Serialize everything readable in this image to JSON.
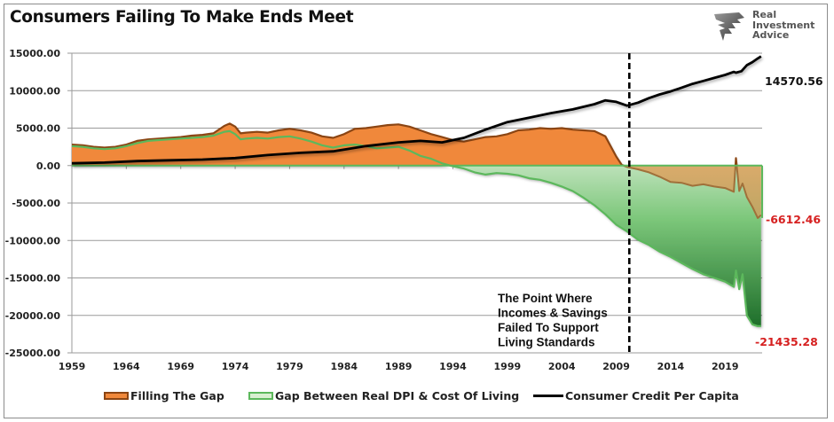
{
  "chart_data": {
    "type": "area",
    "title": "Consumers Failing To Make Ends Meet",
    "brand": [
      "Real",
      "Investment",
      "Advice"
    ],
    "xlabel": "",
    "ylabel": "",
    "xlim": [
      1959,
      2022.4
    ],
    "ylim": [
      -25000,
      15000
    ],
    "y_ticks": [
      "15000.00",
      "10000.00",
      "5000.00",
      "0.00",
      "-5000.00",
      "-10000.00",
      "-15000.00",
      "-20000.00",
      "-25000.00"
    ],
    "y_tick_values": [
      15000,
      10000,
      5000,
      0,
      -5000,
      -10000,
      -15000,
      -20000,
      -25000
    ],
    "x_ticks": [
      "1959",
      "1964",
      "1969",
      "1974",
      "1979",
      "1984",
      "1989",
      "1994",
      "1999",
      "2004",
      "2009",
      "2014",
      "2019"
    ],
    "x_tick_values": [
      1959,
      1964,
      1969,
      1974,
      1979,
      1984,
      1989,
      1994,
      1999,
      2004,
      2009,
      2014,
      2019
    ],
    "grid": true,
    "legend_position": "bottom",
    "series": [
      {
        "name": "Filling The Gap",
        "kind": "area",
        "color": "#f0883a",
        "edge_color": "#8b4513",
        "x": [
          1959,
          1960,
          1961,
          1962,
          1963,
          1964,
          1965,
          1966,
          1967,
          1968,
          1969,
          1970,
          1971,
          1972,
          1973,
          1973.5,
          1974,
          1974.5,
          1975,
          1976,
          1977,
          1978,
          1979,
          1980,
          1981,
          1982,
          1983,
          1984,
          1985,
          1986,
          1987,
          1988,
          1989,
          1990,
          1991,
          1992,
          1993,
          1994,
          1995,
          1996,
          1997,
          1998,
          1999,
          2000,
          2001,
          2002,
          2003,
          2004,
          2005,
          2006,
          2007,
          2008,
          2009,
          2009.5,
          2010,
          2011,
          2012,
          2013,
          2014,
          2015,
          2016,
          2017,
          2018,
          2019,
          2019.8,
          2020,
          2020.3,
          2020.6,
          2021,
          2021.5,
          2022,
          2022.3
        ],
        "values": [
          2800,
          2700,
          2500,
          2400,
          2500,
          2800,
          3300,
          3500,
          3600,
          3700,
          3800,
          4000,
          4100,
          4300,
          5300,
          5600,
          5200,
          4300,
          4400,
          4500,
          4400,
          4700,
          4900,
          4700,
          4400,
          3900,
          3700,
          4200,
          4900,
          5000,
          5200,
          5400,
          5500,
          5200,
          4700,
          4200,
          3800,
          3400,
          3200,
          3500,
          3800,
          3900,
          4200,
          4700,
          4800,
          5000,
          4900,
          5000,
          4800,
          4700,
          4600,
          3900,
          1200,
          100,
          -200,
          -500,
          -900,
          -1500,
          -2200,
          -2300,
          -2700,
          -2500,
          -2800,
          -3000,
          -3500,
          1000,
          -3400,
          -2400,
          -4200,
          -5500,
          -7000,
          -6612.46
        ]
      },
      {
        "name": "Gap Between Real DPI & Cost Of Living",
        "kind": "area",
        "color": "#5cb85c",
        "x": [
          1959,
          1960,
          1961,
          1962,
          1963,
          1964,
          1965,
          1966,
          1967,
          1968,
          1969,
          1970,
          1971,
          1972,
          1973,
          1973.5,
          1974,
          1974.5,
          1975,
          1976,
          1977,
          1978,
          1979,
          1980,
          1981,
          1982,
          1983,
          1984,
          1985,
          1986,
          1987,
          1988,
          1989,
          1990,
          1991,
          1992,
          1993,
          1994,
          1995,
          1996,
          1997,
          1998,
          1999,
          2000,
          2001,
          2002,
          2003,
          2004,
          2005,
          2006,
          2007,
          2008,
          2009,
          2010,
          2011,
          2012,
          2013,
          2014,
          2015,
          2016,
          2017,
          2018,
          2019,
          2019.8,
          2020,
          2020.3,
          2020.6,
          2021,
          2021.5,
          2022,
          2022.3
        ],
        "values": [
          2600,
          2500,
          2300,
          2200,
          2300,
          2600,
          3000,
          3300,
          3400,
          3500,
          3600,
          3700,
          3800,
          4000,
          4500,
          4600,
          4200,
          3500,
          3600,
          3700,
          3600,
          3800,
          3900,
          3600,
          3200,
          2700,
          2400,
          2700,
          2800,
          2600,
          2300,
          2400,
          2500,
          2000,
          1300,
          900,
          300,
          -100,
          -400,
          -900,
          -1200,
          -1000,
          -1100,
          -1300,
          -1700,
          -1900,
          -2300,
          -2800,
          -3400,
          -4300,
          -5300,
          -6500,
          -7900,
          -8800,
          -9900,
          -10600,
          -11500,
          -12200,
          -13000,
          -13800,
          -14500,
          -15000,
          -15500,
          -16200,
          -14000,
          -16500,
          -14500,
          -20000,
          -21200,
          -21435.28,
          -21435.28
        ]
      },
      {
        "name": "Consumer Credit Per Capita",
        "kind": "line",
        "color": "#000000",
        "x": [
          1959,
          1962,
          1965,
          1968,
          1971,
          1974,
          1977,
          1980,
          1983,
          1986,
          1989,
          1991,
          1993,
          1995,
          1997,
          1999,
          2001,
          2003,
          2005,
          2007,
          2008,
          2009,
          2010,
          2011,
          2012,
          2013,
          2014,
          2015,
          2016,
          2017,
          2018,
          2019,
          2019.8,
          2020,
          2020.5,
          2021,
          2021.5,
          2022,
          2022.3
        ],
        "values": [
          300,
          400,
          600,
          700,
          800,
          1000,
          1400,
          1700,
          1900,
          2600,
          3100,
          3300,
          3100,
          3700,
          4800,
          5800,
          6400,
          7000,
          7500,
          8200,
          8700,
          8500,
          8000,
          8400,
          9000,
          9500,
          9900,
          10400,
          10900,
          11300,
          11700,
          12100,
          12500,
          12400,
          12600,
          13400,
          13800,
          14300,
          14570.56
        ]
      }
    ],
    "annotations": {
      "end_labels": [
        {
          "series": "Consumer Credit Per Capita",
          "text": "14570.56",
          "color": "#111111"
        },
        {
          "series": "Filling The Gap",
          "text": "-6612.46",
          "color": "#d62020"
        },
        {
          "series": "Gap Between Real DPI & Cost Of Living",
          "text": "-21435.28",
          "color": "#d62020"
        }
      ],
      "vertical_marker_year": 2010.2,
      "note_lines": [
        "The Point Where",
        "Incomes & Savings",
        "Failed To Support",
        "Living Standards"
      ]
    }
  }
}
